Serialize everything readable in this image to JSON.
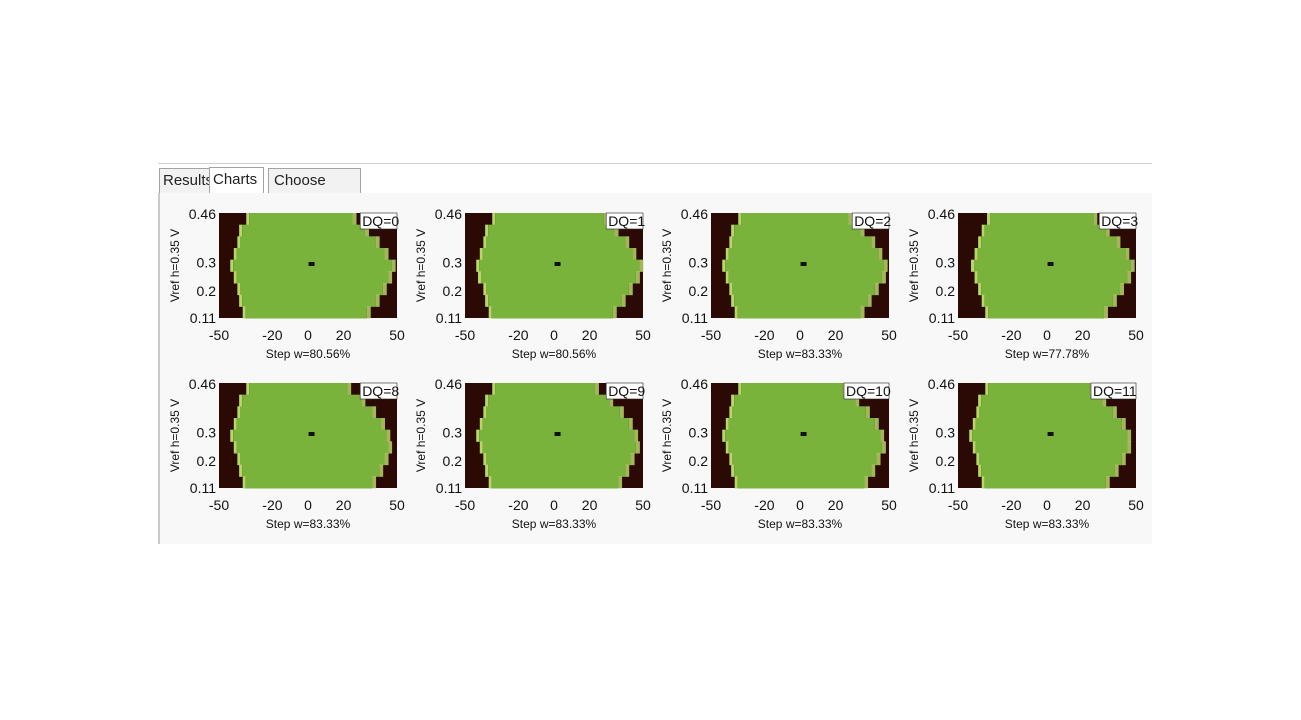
{
  "tabs": [
    {
      "label": "Results",
      "active": false
    },
    {
      "label": "Charts",
      "active": true
    },
    {
      "label": "Choose Tests",
      "active": false
    }
  ],
  "colors": {
    "pass": "#7ab33b",
    "fail": "#2b0a06",
    "edge": "#b9d66a",
    "marker": "#111111"
  },
  "chart_data": [
    {
      "type": "heatmap",
      "title": "DQ=0",
      "xlabel": "Step w=80.56%",
      "ylabel": "Vref h=0.35 V",
      "xticks": [
        "-50",
        "-20",
        "0",
        "20",
        "50"
      ],
      "yticks": [
        "0.46",
        "0.3",
        "0.2",
        "0.11"
      ],
      "xlim": [
        -50,
        50
      ],
      "ylim": [
        0.11,
        0.46
      ],
      "eye_center": [
        2,
        0.29
      ],
      "eye_left": [
        -33,
        -37,
        -38,
        -40,
        -42,
        -40,
        -38,
        -37,
        -35
      ],
      "eye_right": [
        25,
        32,
        38,
        43,
        47,
        45,
        42,
        38,
        33
      ]
    },
    {
      "type": "heatmap",
      "title": "DQ=1",
      "xlabel": "Step w=80.56%",
      "ylabel": "Vref h=0.35 V",
      "xticks": [
        "-50",
        "-20",
        "0",
        "20",
        "50"
      ],
      "yticks": [
        "0.46",
        "0.3",
        "0.2",
        "0.11"
      ],
      "xlim": [
        -50,
        50
      ],
      "ylim": [
        0.11,
        0.46
      ],
      "eye_center": [
        2,
        0.29
      ],
      "eye_left": [
        -33,
        -37,
        -38,
        -40,
        -42,
        -41,
        -38,
        -37,
        -35
      ],
      "eye_right": [
        28,
        34,
        40,
        44,
        48,
        46,
        42,
        38,
        33
      ]
    },
    {
      "type": "heatmap",
      "title": "DQ=2",
      "xlabel": "Step w=83.33%",
      "ylabel": "Vref h=0.35 V",
      "xticks": [
        "-50",
        "-20",
        "0",
        "20",
        "50"
      ],
      "yticks": [
        "0.46",
        "0.3",
        "0.2",
        "0.11"
      ],
      "xlim": [
        -50,
        50
      ],
      "ylim": [
        0.11,
        0.46
      ],
      "eye_center": [
        2,
        0.29
      ],
      "eye_left": [
        -33,
        -37,
        -38,
        -40,
        -42,
        -40,
        -38,
        -37,
        -35
      ],
      "eye_right": [
        27,
        34,
        40,
        44,
        47,
        46,
        42,
        38,
        34
      ]
    },
    {
      "type": "heatmap",
      "title": "DQ=3",
      "xlabel": "Step w=77.78%",
      "ylabel": "Vref h=0.35 V",
      "xticks": [
        "-50",
        "-20",
        "0",
        "20",
        "50"
      ],
      "yticks": [
        "0.46",
        "0.3",
        "0.2",
        "0.11"
      ],
      "xlim": [
        -50,
        50
      ],
      "ylim": [
        0.11,
        0.46
      ],
      "eye_center": [
        2,
        0.29
      ],
      "eye_left": [
        -32,
        -35,
        -37,
        -39,
        -41,
        -39,
        -37,
        -35,
        -33
      ],
      "eye_right": [
        26,
        33,
        39,
        44,
        47,
        45,
        41,
        37,
        32
      ]
    },
    {
      "type": "heatmap",
      "title": "DQ=8",
      "xlabel": "Step w=83.33%",
      "ylabel": "Vref h=0.35 V",
      "xticks": [
        "-50",
        "-20",
        "0",
        "20",
        "50"
      ],
      "yticks": [
        "0.46",
        "0.3",
        "0.2",
        "0.11"
      ],
      "xlim": [
        -50,
        50
      ],
      "ylim": [
        0.11,
        0.46
      ],
      "eye_center": [
        2,
        0.29
      ],
      "eye_left": [
        -33,
        -37,
        -38,
        -40,
        -42,
        -40,
        -38,
        -37,
        -35
      ],
      "eye_right": [
        22,
        30,
        36,
        41,
        44,
        45,
        43,
        40,
        36
      ]
    },
    {
      "type": "heatmap",
      "title": "DQ=9",
      "xlabel": "Step w=83.33%",
      "ylabel": "Vref h=0.35 V",
      "xticks": [
        "-50",
        "-20",
        "0",
        "20",
        "50"
      ],
      "yticks": [
        "0.46",
        "0.3",
        "0.2",
        "0.11"
      ],
      "xlim": [
        -50,
        50
      ],
      "ylim": [
        0.11,
        0.46
      ],
      "eye_center": [
        2,
        0.29
      ],
      "eye_left": [
        -33,
        -37,
        -38,
        -40,
        -42,
        -40,
        -38,
        -37,
        -35
      ],
      "eye_right": [
        23,
        31,
        37,
        42,
        45,
        46,
        43,
        40,
        36
      ]
    },
    {
      "type": "heatmap",
      "title": "DQ=10",
      "xlabel": "Step w=83.33%",
      "ylabel": "Vref h=0.35 V",
      "xticks": [
        "-50",
        "-20",
        "0",
        "20",
        "50"
      ],
      "yticks": [
        "0.46",
        "0.3",
        "0.2",
        "0.11"
      ],
      "xlim": [
        -50,
        50
      ],
      "ylim": [
        0.11,
        0.46
      ],
      "eye_center": [
        2,
        0.29
      ],
      "eye_left": [
        -33,
        -37,
        -38,
        -40,
        -42,
        -40,
        -38,
        -37,
        -35
      ],
      "eye_right": [
        24,
        31,
        37,
        42,
        45,
        46,
        43,
        40,
        36
      ]
    },
    {
      "type": "heatmap",
      "title": "DQ=11",
      "xlabel": "Step w=83.33%",
      "ylabel": "Vref h=0.35 V",
      "xticks": [
        "-50",
        "-20",
        "0",
        "20",
        "50"
      ],
      "yticks": [
        "0.46",
        "0.3",
        "0.2",
        "0.11"
      ],
      "xlim": [
        -50,
        50
      ],
      "ylim": [
        0.11,
        0.46
      ],
      "eye_center": [
        2,
        0.29
      ],
      "eye_left": [
        -33,
        -37,
        -38,
        -40,
        -42,
        -40,
        -38,
        -37,
        -35
      ],
      "eye_right": [
        24,
        31,
        37,
        42,
        45,
        45,
        42,
        38,
        33
      ]
    }
  ]
}
